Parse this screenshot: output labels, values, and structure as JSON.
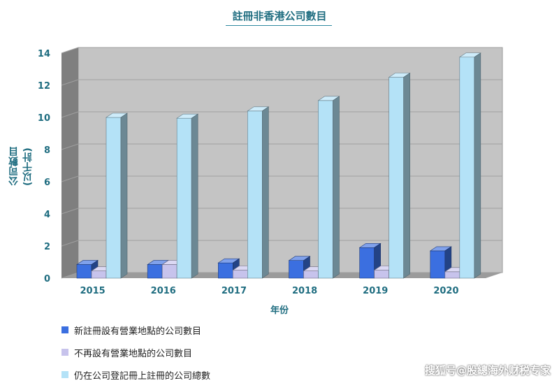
{
  "chart_data": {
    "type": "bar",
    "title": "註冊非香港公司數目",
    "ylabel": "公司數目\n(以千計)",
    "xlabel": "年份",
    "categories": [
      "2015",
      "2016",
      "2017",
      "2018",
      "2019",
      "2020"
    ],
    "ylim": [
      0,
      14
    ],
    "yticks": [
      0,
      2,
      4,
      6,
      8,
      10,
      12,
      14
    ],
    "grid": true,
    "legend_position": "bottom-left",
    "series": [
      {
        "name": "新註冊設有營業地點的公司數目",
        "color": "#3b6fe0",
        "values": [
          0.85,
          0.85,
          0.95,
          1.1,
          1.9,
          1.7
        ]
      },
      {
        "name": "不再設有營業地點的公司數目",
        "color": "#c7c3ec",
        "values": [
          0.45,
          0.85,
          0.5,
          0.45,
          0.5,
          0.4
        ]
      },
      {
        "name": "仍在公司登記冊上註冊的公司總數",
        "color": "#b4e2f7",
        "values": [
          10.0,
          9.95,
          10.4,
          11.05,
          12.5,
          13.75
        ]
      }
    ]
  },
  "watermark": "搜狐号@股總海外财税专家"
}
